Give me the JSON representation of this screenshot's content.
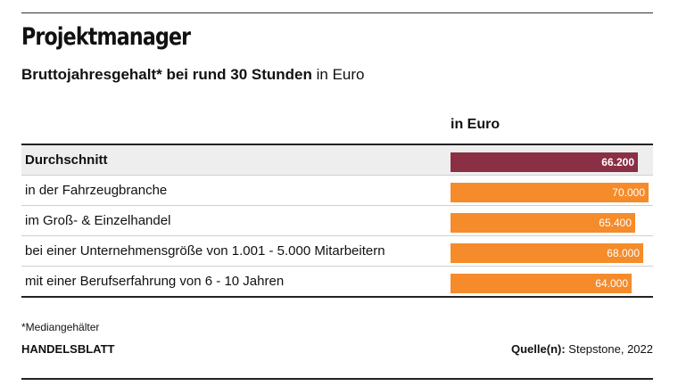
{
  "header": {
    "title": "Projektmanager",
    "subtitle_bold": "Bruttojahresgehalt* bei rund 30 Stunden",
    "subtitle_regular": "in Euro"
  },
  "column_header": "in Euro",
  "colors": {
    "average": "#8b2f45",
    "default": "#f58b2a"
  },
  "chart_data": {
    "type": "bar",
    "orientation": "horizontal",
    "title": "Projektmanager",
    "subtitle": "Bruttojahresgehalt* bei rund 30 Stunden in Euro",
    "categories": [
      "Durchschnitt",
      "in der Fahrzeugbranche",
      "im Groß- & Einzelhandel",
      "bei einer Unternehmensgröße von 1.001 - 5.000 Mitarbeitern",
      "mit einer Berufserfahrung von 6 - 10 Jahren"
    ],
    "values": [
      66200,
      70000,
      65400,
      68000,
      64000
    ],
    "value_labels": [
      "66.200",
      "70.000",
      "65.400",
      "68.000",
      "64.000"
    ],
    "highlight_index": 0,
    "xlim": [
      0,
      70000
    ]
  },
  "footer": {
    "footnote": "*Mediangehälter",
    "brand": "HANDELSBLATT",
    "source_label": "Quelle(n):",
    "source_value": "Stepstone, 2022"
  }
}
